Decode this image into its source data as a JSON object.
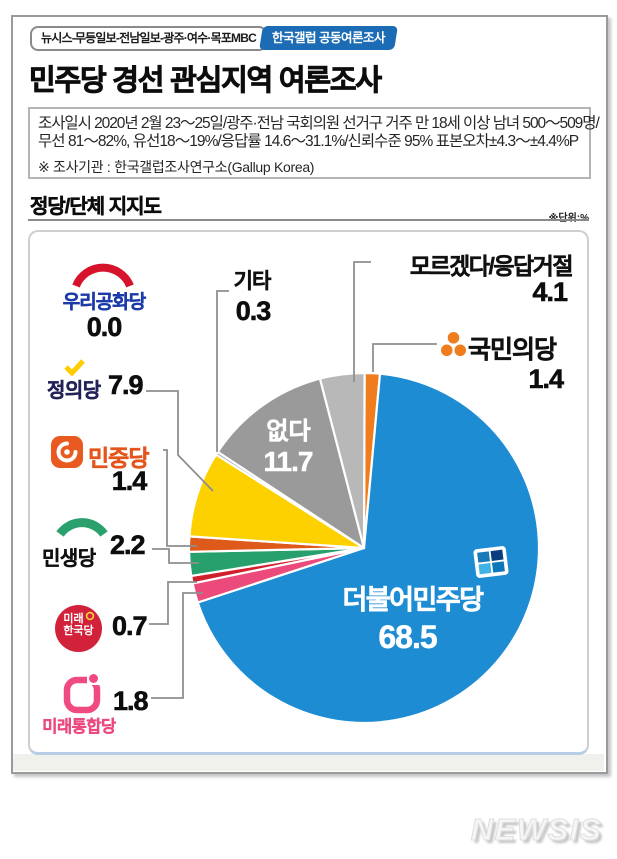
{
  "header": {
    "media_badge": "뉴시스-무등일보-전남일보-광주·여수·목포MBC",
    "gallup_badge": "한국갤럽 공동여론조사",
    "title": "민주당 경선 관심지역 여론조사"
  },
  "survey_info": {
    "line1": "조사일시 2020년 2월 23～25일/광주·전남 국회의원 선거구 거주 만 18세 이상 남녀 500～509명/",
    "line2": "무선 81～82%, 유선18～19%/응답률 14.6～31.1%/신뢰수준 95% 표본오차±4.3～±4.4%P",
    "note": "※ 조사기관 : 한국갤럽조사연구소(Gallup Korea)"
  },
  "section": {
    "heading": "정당/단체 지지도",
    "unit_note": "※단위:%"
  },
  "chart_data": {
    "type": "pie",
    "title": "정당/단체 지지도",
    "unit": "%",
    "direction": "clockwise",
    "start_angle_deg": 0.2,
    "slices": [
      {
        "key": "gukmin",
        "label": "국민의당",
        "value": 1.4,
        "color": "#ef7d1e"
      },
      {
        "key": "minjoo",
        "label": "더불어민주당",
        "value": 68.5,
        "color": "#1d8cd3"
      },
      {
        "key": "tonghap",
        "label": "미래통합당",
        "value": 1.8,
        "color": "#ec4a7b"
      },
      {
        "key": "hankook",
        "label": "미래한국당",
        "value": 0.7,
        "color": "#d11f2e"
      },
      {
        "key": "minsaeng",
        "label": "민생당",
        "value": 2.2,
        "color": "#28a06e"
      },
      {
        "key": "minjung",
        "label": "민중당",
        "value": 1.4,
        "color": "#dd5a1a"
      },
      {
        "key": "jeongui",
        "label": "정의당",
        "value": 7.9,
        "color": "#fdd100"
      },
      {
        "key": "gonghwa",
        "label": "우리공화당",
        "value": 0.0,
        "color": "#cf0a2c"
      },
      {
        "key": "gita",
        "label": "기타",
        "value": 0.3,
        "color": "#9a9a9a"
      },
      {
        "key": "eopda",
        "label": "없다",
        "value": 11.7,
        "color": "#9a9a9a"
      },
      {
        "key": "moreugetda",
        "label": "모르겠다/응답거절",
        "value": 4.1,
        "color": "#b8b8b8"
      }
    ]
  },
  "logos": {
    "mirae_hankook": {
      "line1": "미래",
      "line2": "한국당"
    }
  },
  "watermark": "NEWSIS"
}
